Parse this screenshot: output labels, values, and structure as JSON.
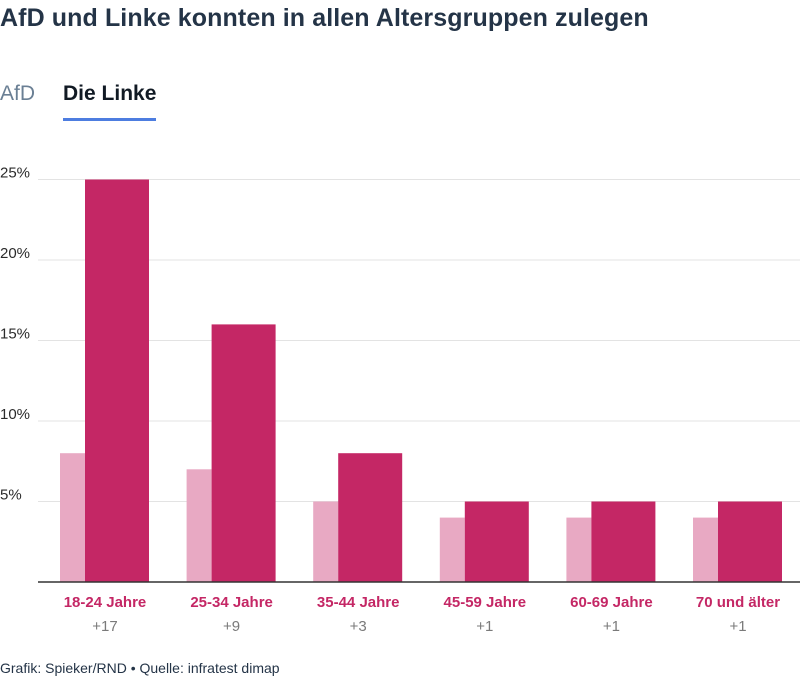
{
  "title": "AfD und Linke konnten in allen Altersgruppen zulegen",
  "tabs": [
    {
      "label": "AfD",
      "active": false
    },
    {
      "label": "Die Linke",
      "active": true
    }
  ],
  "footer": "Grafik: Spieker/RND • Quelle: infratest dimap",
  "colors": {
    "previous": "#e8a9c3",
    "current": "#c42765",
    "category_label": "#c42765",
    "change_label": "#7a7a7a",
    "grid": "#e3e3e3",
    "axis": "#333333",
    "tab_underline": "#4d7de0"
  },
  "chart_data": {
    "type": "bar",
    "categories": [
      "18-24 Jahre",
      "25-34 Jahre",
      "35-44 Jahre",
      "45-59 Jahre",
      "60-69 Jahre",
      "70 und älter"
    ],
    "series": [
      {
        "values": [
          8,
          7,
          5,
          4,
          4,
          4
        ]
      },
      {
        "values": [
          25,
          16,
          8,
          5,
          5,
          5
        ]
      }
    ],
    "changes": [
      "+17",
      "+9",
      "+3",
      "+1",
      "+1",
      "+1"
    ],
    "yticks": [
      5,
      10,
      15,
      20,
      25
    ],
    "ytick_labels": [
      "5%",
      "10%",
      "15%",
      "20%",
      "25%"
    ],
    "ylim": [
      0,
      25
    ],
    "grid": true
  }
}
